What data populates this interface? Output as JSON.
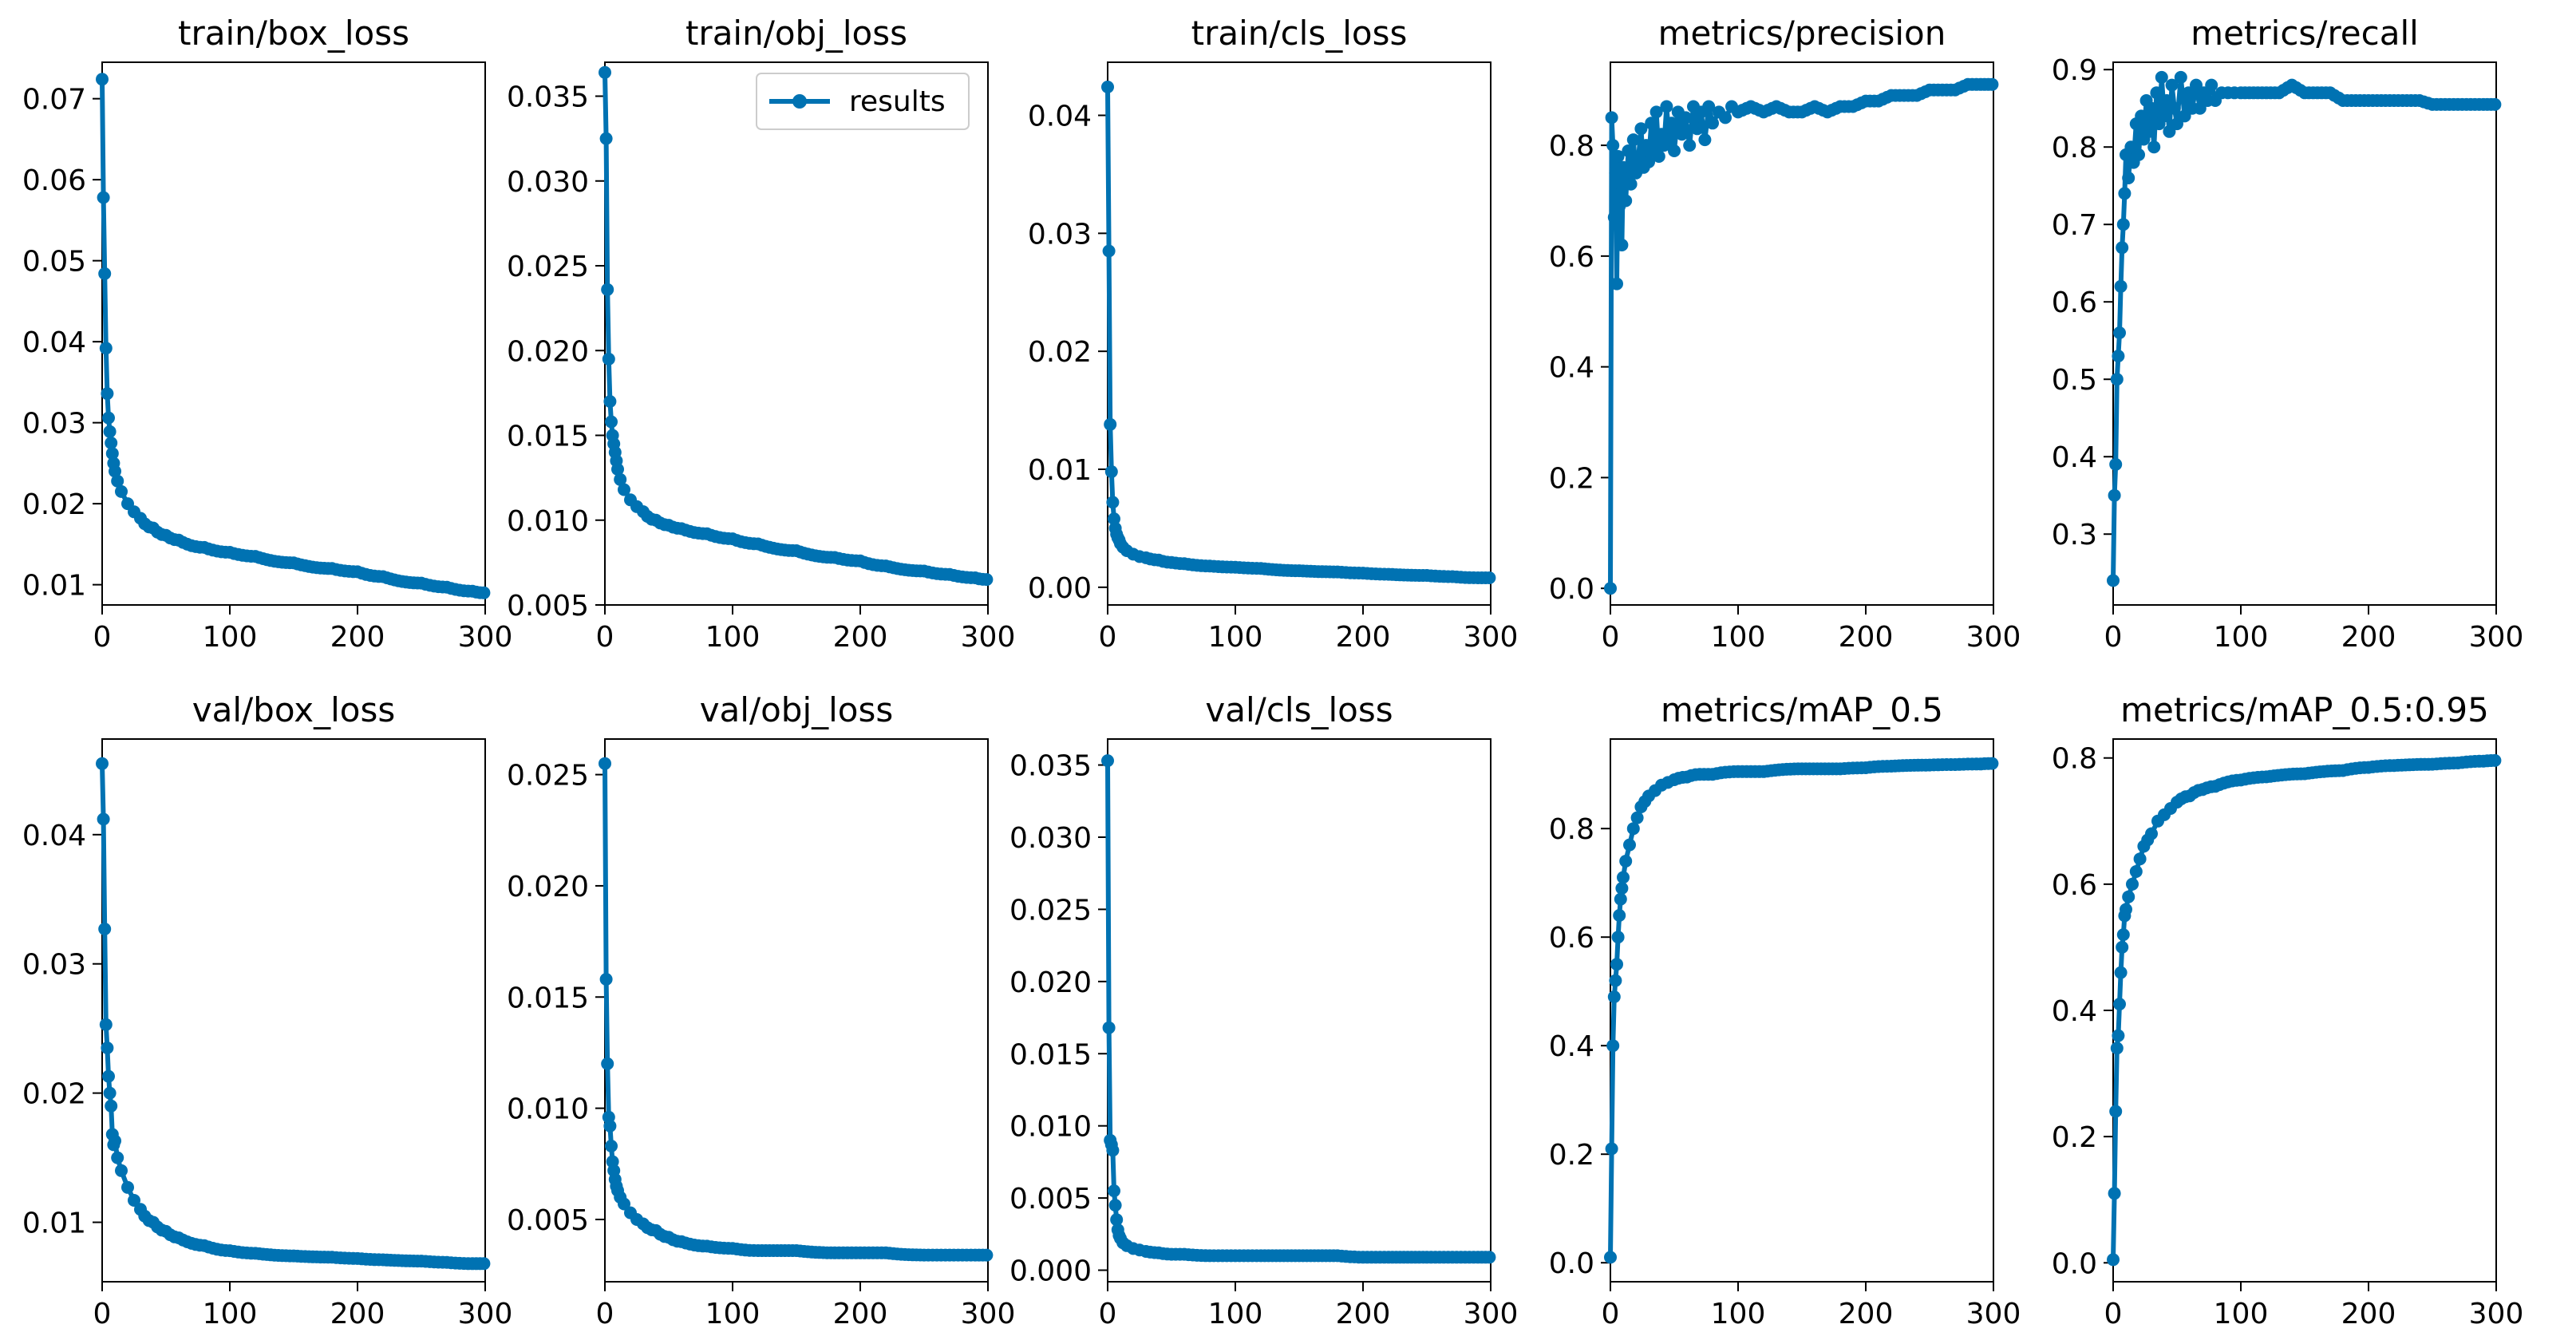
{
  "figure": {
    "series_color": "#0072b2",
    "legend_label": "results"
  },
  "chart_data": [
    {
      "type": "line",
      "title": "train/box_loss",
      "xlim": [
        0,
        300
      ],
      "ylim": [
        0.0075,
        0.0745
      ],
      "x_ticks": [
        0,
        100,
        200,
        300
      ],
      "y_ticks": [
        0.01,
        0.02,
        0.03,
        0.04,
        0.05,
        0.06,
        0.07
      ],
      "y_tick_labels": [
        "0.01",
        "0.02",
        "0.03",
        "0.04",
        "0.05",
        "0.06",
        "0.07"
      ],
      "legend": false,
      "decay": 0.05,
      "x": [
        0,
        1,
        2,
        3,
        4,
        5,
        6,
        7,
        8,
        9,
        10,
        12,
        15,
        20,
        25,
        30,
        40,
        50,
        60,
        80,
        100,
        120,
        150,
        180,
        200,
        220,
        250,
        270,
        290,
        299
      ],
      "y": [
        0.0724,
        0.0578,
        0.0484,
        0.0392,
        0.0336,
        0.0306,
        0.0289,
        0.0275,
        0.0262,
        0.025,
        0.024,
        0.0228,
        0.0215,
        0.02,
        0.019,
        0.0182,
        0.017,
        0.0161,
        0.0155,
        0.0146,
        0.014,
        0.0135,
        0.0127,
        0.012,
        0.0116,
        0.011,
        0.0102,
        0.0097,
        0.0092,
        0.009
      ]
    },
    {
      "type": "line",
      "title": "train/obj_loss",
      "xlim": [
        0,
        300
      ],
      "ylim": [
        0.005,
        0.037
      ],
      "x_ticks": [
        0,
        100,
        200,
        300
      ],
      "y_ticks": [
        0.005,
        0.01,
        0.015,
        0.02,
        0.025,
        0.03,
        0.035
      ],
      "y_tick_labels": [
        "0.005",
        "0.010",
        "0.015",
        "0.020",
        "0.025",
        "0.030",
        "0.035"
      ],
      "legend": true,
      "decay": 0.05,
      "x": [
        0,
        1,
        2,
        3,
        4,
        5,
        6,
        7,
        8,
        9,
        10,
        12,
        15,
        20,
        25,
        30,
        40,
        50,
        60,
        80,
        100,
        120,
        150,
        180,
        200,
        220,
        250,
        270,
        290,
        299
      ],
      "y": [
        0.0364,
        0.0325,
        0.0236,
        0.0195,
        0.017,
        0.0158,
        0.015,
        0.0145,
        0.014,
        0.0135,
        0.013,
        0.0124,
        0.0118,
        0.0112,
        0.0108,
        0.0105,
        0.01,
        0.0097,
        0.0095,
        0.0092,
        0.0089,
        0.0086,
        0.0082,
        0.0078,
        0.0076,
        0.0073,
        0.007,
        0.0068,
        0.0066,
        0.0065
      ]
    },
    {
      "type": "line",
      "title": "train/cls_loss",
      "xlim": [
        0,
        300
      ],
      "ylim": [
        -0.0015,
        0.0445
      ],
      "x_ticks": [
        0,
        100,
        200,
        300
      ],
      "y_ticks": [
        0,
        0.01,
        0.02,
        0.03,
        0.04
      ],
      "y_tick_labels": [
        "0.00",
        "0.01",
        "0.02",
        "0.03",
        "0.04"
      ],
      "legend": false,
      "decay": 0.04,
      "x": [
        0,
        1,
        2,
        3,
        4,
        5,
        6,
        7,
        8,
        9,
        10,
        12,
        15,
        20,
        25,
        30,
        40,
        50,
        60,
        80,
        100,
        120,
        150,
        180,
        200,
        220,
        250,
        270,
        290,
        299
      ],
      "y": [
        0.0424,
        0.0285,
        0.0138,
        0.0098,
        0.0072,
        0.0058,
        0.005,
        0.0045,
        0.0042,
        0.004,
        0.0037,
        0.0034,
        0.0031,
        0.0028,
        0.0026,
        0.0025,
        0.0023,
        0.0021,
        0.002,
        0.0018,
        0.0017,
        0.0016,
        0.0014,
        0.0013,
        0.0012,
        0.0011,
        0.001,
        0.0009,
        0.0008,
        0.0008
      ]
    },
    {
      "type": "line",
      "title": "metrics/precision",
      "xlim": [
        0,
        300
      ],
      "ylim": [
        -0.03,
        0.95
      ],
      "x_ticks": [
        0,
        100,
        200,
        300
      ],
      "y_ticks": [
        0,
        0.2,
        0.4,
        0.6,
        0.8
      ],
      "y_tick_labels": [
        "0.0",
        "0.2",
        "0.4",
        "0.6",
        "0.8"
      ],
      "legend": false,
      "x": [
        0,
        1,
        2,
        3,
        4,
        5,
        6,
        7,
        8,
        9,
        10,
        12,
        14,
        16,
        18,
        20,
        22,
        24,
        26,
        28,
        30,
        32,
        34,
        36,
        38,
        40,
        42,
        44,
        46,
        48,
        50,
        53,
        56,
        59,
        62,
        65,
        68,
        71,
        74,
        77,
        80,
        85,
        90,
        95,
        100,
        110,
        120,
        130,
        140,
        150,
        160,
        170,
        180,
        190,
        200,
        210,
        220,
        230,
        240,
        250,
        260,
        270,
        280,
        290,
        299
      ],
      "y": [
        0.0,
        0.85,
        0.8,
        0.67,
        0.75,
        0.55,
        0.78,
        0.69,
        0.73,
        0.62,
        0.76,
        0.7,
        0.79,
        0.73,
        0.81,
        0.75,
        0.78,
        0.83,
        0.76,
        0.8,
        0.77,
        0.84,
        0.79,
        0.86,
        0.78,
        0.82,
        0.8,
        0.87,
        0.81,
        0.84,
        0.79,
        0.86,
        0.82,
        0.85,
        0.8,
        0.87,
        0.83,
        0.86,
        0.81,
        0.87,
        0.84,
        0.86,
        0.85,
        0.87,
        0.86,
        0.87,
        0.86,
        0.87,
        0.86,
        0.86,
        0.87,
        0.86,
        0.87,
        0.87,
        0.88,
        0.88,
        0.89,
        0.89,
        0.89,
        0.9,
        0.9,
        0.9,
        0.91,
        0.91,
        0.91
      ]
    },
    {
      "type": "line",
      "title": "metrics/recall",
      "xlim": [
        0,
        300
      ],
      "ylim": [
        0.2085,
        0.9095
      ],
      "x_ticks": [
        0,
        100,
        200,
        300
      ],
      "y_ticks": [
        0.3,
        0.4,
        0.5,
        0.6,
        0.7,
        0.8,
        0.9
      ],
      "y_tick_labels": [
        "0.3",
        "0.4",
        "0.5",
        "0.6",
        "0.7",
        "0.8",
        "0.9"
      ],
      "legend": false,
      "x": [
        0,
        1,
        2,
        3,
        4,
        5,
        6,
        7,
        8,
        9,
        10,
        12,
        14,
        16,
        18,
        20,
        22,
        24,
        26,
        28,
        30,
        32,
        34,
        36,
        38,
        40,
        42,
        44,
        46,
        48,
        50,
        53,
        56,
        59,
        62,
        65,
        68,
        71,
        74,
        77,
        80,
        85,
        90,
        95,
        100,
        110,
        120,
        130,
        140,
        150,
        160,
        170,
        180,
        190,
        200,
        210,
        220,
        230,
        240,
        250,
        260,
        270,
        280,
        290,
        299
      ],
      "y": [
        0.24,
        0.35,
        0.39,
        0.5,
        0.53,
        0.56,
        0.62,
        0.67,
        0.7,
        0.74,
        0.79,
        0.76,
        0.8,
        0.78,
        0.83,
        0.79,
        0.84,
        0.81,
        0.86,
        0.82,
        0.85,
        0.8,
        0.87,
        0.83,
        0.89,
        0.84,
        0.86,
        0.82,
        0.88,
        0.85,
        0.83,
        0.89,
        0.84,
        0.87,
        0.85,
        0.88,
        0.85,
        0.87,
        0.86,
        0.88,
        0.86,
        0.87,
        0.87,
        0.87,
        0.87,
        0.87,
        0.87,
        0.87,
        0.88,
        0.87,
        0.87,
        0.87,
        0.86,
        0.86,
        0.86,
        0.86,
        0.86,
        0.86,
        0.86,
        0.855,
        0.855,
        0.855,
        0.855,
        0.855,
        0.855
      ]
    },
    {
      "type": "line",
      "title": "val/box_loss",
      "xlim": [
        0,
        300
      ],
      "ylim": [
        0.0054,
        0.0474
      ],
      "x_ticks": [
        0,
        100,
        200,
        300
      ],
      "y_ticks": [
        0.01,
        0.02,
        0.03,
        0.04
      ],
      "y_tick_labels": [
        "0.01",
        "0.02",
        "0.03",
        "0.04"
      ],
      "legend": false,
      "decay": 0.04,
      "x": [
        0,
        1,
        2,
        3,
        4,
        5,
        6,
        7,
        8,
        9,
        10,
        12,
        15,
        20,
        25,
        30,
        40,
        50,
        60,
        80,
        100,
        120,
        150,
        180,
        200,
        220,
        250,
        270,
        290,
        299
      ],
      "y": [
        0.0455,
        0.0412,
        0.0327,
        0.0253,
        0.0235,
        0.0213,
        0.02,
        0.019,
        0.0168,
        0.016,
        0.0163,
        0.015,
        0.014,
        0.0127,
        0.0117,
        0.011,
        0.01,
        0.0093,
        0.0088,
        0.0082,
        0.0078,
        0.0076,
        0.0074,
        0.0073,
        0.0072,
        0.0071,
        0.007,
        0.0069,
        0.0068,
        0.0068
      ]
    },
    {
      "type": "line",
      "title": "val/obj_loss",
      "xlim": [
        0,
        300
      ],
      "ylim": [
        0.0022,
        0.0266
      ],
      "x_ticks": [
        0,
        100,
        200,
        300
      ],
      "y_ticks": [
        0.005,
        0.01,
        0.015,
        0.02,
        0.025
      ],
      "y_tick_labels": [
        "0.005",
        "0.010",
        "0.015",
        "0.020",
        "0.025"
      ],
      "legend": false,
      "decay": 0.05,
      "x": [
        0,
        1,
        2,
        3,
        4,
        5,
        6,
        7,
        8,
        9,
        10,
        12,
        15,
        20,
        25,
        30,
        40,
        50,
        60,
        80,
        100,
        120,
        150,
        180,
        200,
        220,
        250,
        270,
        290,
        299
      ],
      "y": [
        0.0255,
        0.0158,
        0.012,
        0.0096,
        0.0092,
        0.0083,
        0.0076,
        0.0072,
        0.0068,
        0.0065,
        0.0063,
        0.006,
        0.0057,
        0.0053,
        0.005,
        0.0048,
        0.0045,
        0.0042,
        0.004,
        0.0038,
        0.0037,
        0.0036,
        0.0036,
        0.0035,
        0.0035,
        0.0035,
        0.0034,
        0.0034,
        0.0034,
        0.0034
      ]
    },
    {
      "type": "line",
      "title": "val/cls_loss",
      "xlim": [
        0,
        300
      ],
      "ylim": [
        -0.0008,
        0.0368
      ],
      "x_ticks": [
        0,
        100,
        200,
        300
      ],
      "y_ticks": [
        0,
        0.005,
        0.01,
        0.015,
        0.02,
        0.025,
        0.03,
        0.035
      ],
      "y_tick_labels": [
        "0.000",
        "0.005",
        "0.010",
        "0.015",
        "0.020",
        "0.025",
        "0.030",
        "0.035"
      ],
      "legend": false,
      "decay": 0.03,
      "x": [
        0,
        1,
        2,
        3,
        4,
        5,
        6,
        7,
        8,
        9,
        10,
        12,
        15,
        20,
        25,
        30,
        40,
        50,
        60,
        80,
        100,
        120,
        150,
        180,
        200,
        220,
        250,
        270,
        290,
        299
      ],
      "y": [
        0.0353,
        0.0168,
        0.009,
        0.0087,
        0.0083,
        0.0055,
        0.0045,
        0.0035,
        0.0028,
        0.0024,
        0.0022,
        0.0019,
        0.0017,
        0.0015,
        0.0014,
        0.0013,
        0.0012,
        0.0011,
        0.0011,
        0.001,
        0.001,
        0.001,
        0.001,
        0.001,
        0.0009,
        0.0009,
        0.0009,
        0.0009,
        0.0009,
        0.0009
      ]
    },
    {
      "type": "line",
      "title": "metrics/mAP_0.5",
      "xlim": [
        0,
        300
      ],
      "ylim": [
        -0.035,
        0.965
      ],
      "x_ticks": [
        0,
        100,
        200,
        300
      ],
      "y_ticks": [
        0,
        0.2,
        0.4,
        0.6,
        0.8
      ],
      "y_tick_labels": [
        "0.0",
        "0.2",
        "0.4",
        "0.6",
        "0.8"
      ],
      "legend": false,
      "decay": 0.05,
      "x": [
        0,
        1,
        2,
        3,
        4,
        5,
        6,
        7,
        8,
        9,
        10,
        12,
        15,
        18,
        21,
        24,
        27,
        30,
        35,
        40,
        45,
        50,
        60,
        70,
        80,
        100,
        120,
        150,
        180,
        200,
        220,
        250,
        270,
        290,
        299
      ],
      "y": [
        0.01,
        0.21,
        0.4,
        0.49,
        0.52,
        0.55,
        0.6,
        0.64,
        0.67,
        0.69,
        0.71,
        0.74,
        0.77,
        0.8,
        0.82,
        0.84,
        0.85,
        0.86,
        0.87,
        0.88,
        0.885,
        0.89,
        0.895,
        0.9,
        0.9,
        0.905,
        0.905,
        0.91,
        0.91,
        0.912,
        0.915,
        0.917,
        0.918,
        0.919,
        0.92
      ]
    },
    {
      "type": "line",
      "title": "metrics/mAP_0.5:0.95",
      "xlim": [
        0,
        300
      ],
      "ylim": [
        -0.03,
        0.83
      ],
      "x_ticks": [
        0,
        100,
        200,
        300
      ],
      "y_ticks": [
        0,
        0.2,
        0.4,
        0.6,
        0.8
      ],
      "y_tick_labels": [
        "0.0",
        "0.2",
        "0.4",
        "0.6",
        "0.8"
      ],
      "legend": false,
      "decay": 0.04,
      "x": [
        0,
        1,
        2,
        3,
        4,
        5,
        6,
        7,
        8,
        9,
        10,
        12,
        15,
        18,
        21,
        24,
        27,
        30,
        35,
        40,
        45,
        50,
        60,
        70,
        80,
        100,
        120,
        150,
        180,
        200,
        220,
        250,
        270,
        290,
        299
      ],
      "y": [
        0.005,
        0.11,
        0.24,
        0.34,
        0.36,
        0.41,
        0.46,
        0.5,
        0.52,
        0.55,
        0.56,
        0.58,
        0.6,
        0.62,
        0.64,
        0.66,
        0.67,
        0.68,
        0.7,
        0.71,
        0.72,
        0.73,
        0.74,
        0.75,
        0.755,
        0.765,
        0.77,
        0.775,
        0.78,
        0.785,
        0.788,
        0.79,
        0.792,
        0.795,
        0.796
      ]
    }
  ]
}
